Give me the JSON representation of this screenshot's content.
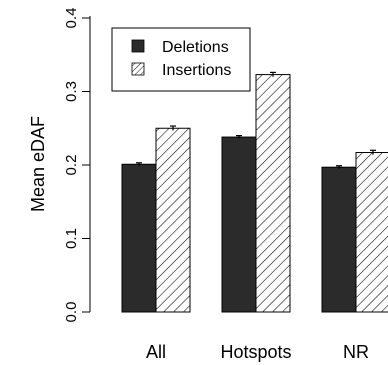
{
  "chart_data": {
    "type": "bar",
    "categories": [
      "All",
      "Hotspots",
      "NR"
    ],
    "series": [
      {
        "name": "Deletions",
        "values": [
          0.201,
          0.238,
          0.197
        ],
        "errors": [
          0.002,
          0.002,
          0.002
        ],
        "pattern": "solid",
        "color": "#2b2b2b"
      },
      {
        "name": "Insertions",
        "values": [
          0.25,
          0.323,
          0.217
        ],
        "errors": [
          0.003,
          0.003,
          0.003
        ],
        "pattern": "hatched",
        "color": "#ffffff"
      }
    ],
    "xlabel": "",
    "ylabel": "Mean eDAF",
    "ylim": [
      0,
      0.4
    ],
    "yticks": [
      "0.0",
      "0.1",
      "0.2",
      "0.3",
      "0.4"
    ],
    "legend_position": "top-left",
    "grid": false
  }
}
